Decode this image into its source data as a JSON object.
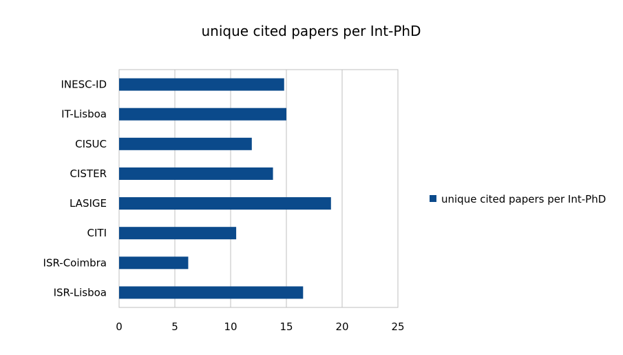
{
  "chart_data": {
    "type": "bar",
    "orientation": "horizontal",
    "title": "unique cited papers per Int-PhD",
    "categories": [
      "INESC-ID",
      "IT-Lisboa",
      "CISUC",
      "CISTER",
      "LASIGE",
      "CITI",
      "ISR-Coimbra",
      "ISR-Lisboa"
    ],
    "series": [
      {
        "name": "unique cited papers per Int-PhD",
        "values": [
          14.8,
          15.0,
          11.9,
          13.8,
          19.0,
          10.5,
          6.2,
          16.5
        ]
      }
    ],
    "xlim": [
      0,
      25
    ],
    "xticks": [
      "0",
      "5",
      "10",
      "15",
      "20",
      "25"
    ],
    "xlabel": "",
    "ylabel": "",
    "grid": "vertical",
    "legend_position": "right",
    "bar_color": "#0b4a8b",
    "grid_color": "#bfbfbf"
  }
}
